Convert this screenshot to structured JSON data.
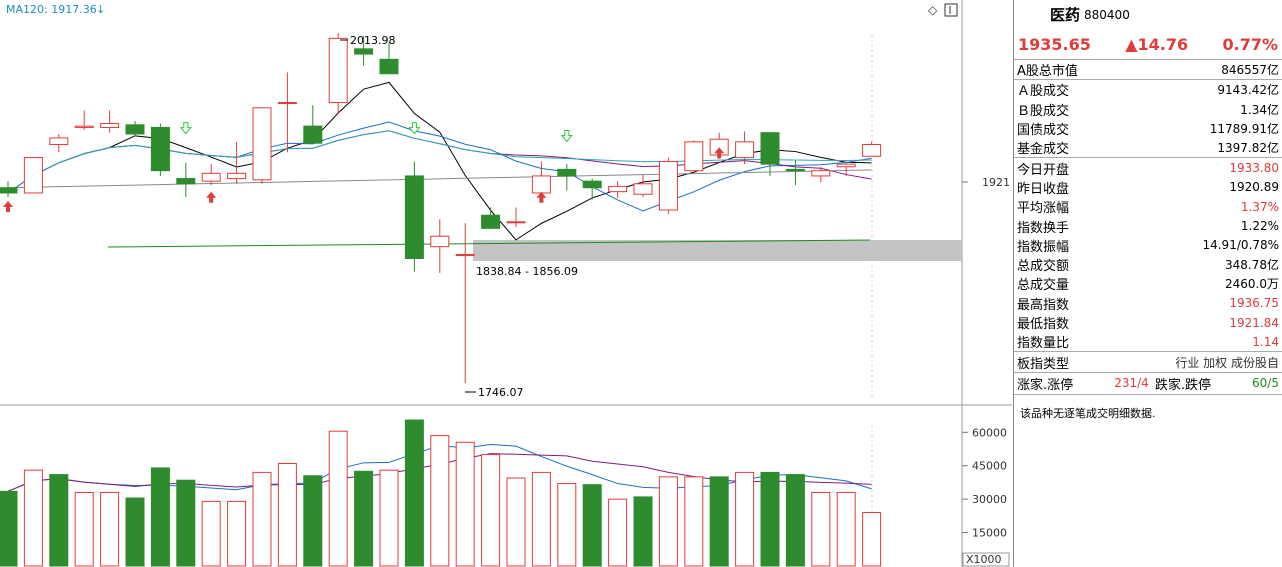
{
  "indicator": {
    "label": "MA120: 1917.36"
  },
  "annotations": {
    "high": "2013.98",
    "low": "1746.07",
    "gap": "1838.84 - 1856.09",
    "right_tick": "1921",
    "vol_unit": "X1000"
  },
  "chart_data": {
    "type": "candlestick",
    "price_candles": [
      {
        "o": 1897,
        "h": 1902,
        "l": 1890,
        "c": 1893
      },
      {
        "o": 1893,
        "h": 1920,
        "l": 1893,
        "c": 1920
      },
      {
        "o": 1930,
        "h": 1938,
        "l": 1924,
        "c": 1935
      },
      {
        "o": 1943,
        "h": 1956,
        "l": 1941,
        "c": 1944
      },
      {
        "o": 1943,
        "h": 1956,
        "l": 1939,
        "c": 1946
      },
      {
        "o": 1945,
        "h": 1948,
        "l": 1936,
        "c": 1938
      },
      {
        "o": 1943,
        "h": 1946,
        "l": 1906,
        "c": 1910
      },
      {
        "o": 1904,
        "h": 1916,
        "l": 1890,
        "c": 1900
      },
      {
        "o": 1902,
        "h": 1915,
        "l": 1899,
        "c": 1908
      },
      {
        "o": 1904,
        "h": 1932,
        "l": 1900,
        "c": 1908
      },
      {
        "o": 1903,
        "h": 1958,
        "l": 1900,
        "c": 1958
      },
      {
        "o": 1962,
        "h": 1985,
        "l": 1924,
        "c": 1962
      },
      {
        "o": 1944,
        "h": 1960,
        "l": 1935,
        "c": 1931
      },
      {
        "o": 1962,
        "h": 2015,
        "l": 1953,
        "c": 2011
      },
      {
        "o": 2003,
        "h": 2013,
        "l": 1990,
        "c": 1999
      },
      {
        "o": 1995,
        "h": 2008,
        "l": 1985,
        "c": 1984
      },
      {
        "o": 1906,
        "h": 1917,
        "l": 1833,
        "c": 1843
      },
      {
        "o": 1852,
        "h": 1873,
        "l": 1832,
        "c": 1860
      },
      {
        "o": 1846,
        "h": 1870,
        "l": 1748,
        "c": 1846
      },
      {
        "o": 1876,
        "h": 1882,
        "l": 1866,
        "c": 1866
      },
      {
        "o": 1871,
        "h": 1882,
        "l": 1867,
        "c": 1871
      },
      {
        "o": 1893,
        "h": 1917,
        "l": 1891,
        "c": 1906
      },
      {
        "o": 1911,
        "h": 1915,
        "l": 1895,
        "c": 1906
      },
      {
        "o": 1902,
        "h": 1904,
        "l": 1888,
        "c": 1897
      },
      {
        "o": 1894,
        "h": 1902,
        "l": 1889,
        "c": 1898
      },
      {
        "o": 1892,
        "h": 1907,
        "l": 1890,
        "c": 1900
      },
      {
        "o": 1880,
        "h": 1920,
        "l": 1877,
        "c": 1917
      },
      {
        "o": 1910,
        "h": 1933,
        "l": 1910,
        "c": 1932
      },
      {
        "o": 1922,
        "h": 1939,
        "l": 1919,
        "c": 1934
      },
      {
        "o": 1920,
        "h": 1940,
        "l": 1915,
        "c": 1932
      },
      {
        "o": 1939,
        "h": 1934,
        "l": 1906,
        "c": 1915
      },
      {
        "o": 1911,
        "h": 1918,
        "l": 1899,
        "c": 1910
      },
      {
        "o": 1906,
        "h": 1913,
        "l": 1901,
        "c": 1910
      },
      {
        "o": 1913,
        "h": 1917,
        "l": 1906,
        "c": 1915
      },
      {
        "o": 1921,
        "h": 1932,
        "l": 1921,
        "c": 1930
      }
    ],
    "volume": [
      {
        "v": 33500,
        "up": false
      },
      {
        "v": 43000,
        "up": true
      },
      {
        "v": 41000,
        "up": false
      },
      {
        "v": 33000,
        "up": true
      },
      {
        "v": 33000,
        "up": true
      },
      {
        "v": 30500,
        "up": false
      },
      {
        "v": 44000,
        "up": false
      },
      {
        "v": 38500,
        "up": false
      },
      {
        "v": 29000,
        "up": true
      },
      {
        "v": 29000,
        "up": true
      },
      {
        "v": 42000,
        "up": true
      },
      {
        "v": 46000,
        "up": true
      },
      {
        "v": 40500,
        "up": false
      },
      {
        "v": 60500,
        "up": true
      },
      {
        "v": 42500,
        "up": false
      },
      {
        "v": 43000,
        "up": true
      },
      {
        "v": 65500,
        "up": false
      },
      {
        "v": 58500,
        "up": true
      },
      {
        "v": 55500,
        "up": true
      },
      {
        "v": 50000,
        "up": true
      },
      {
        "v": 39500,
        "up": true
      },
      {
        "v": 42000,
        "up": true
      },
      {
        "v": 37000,
        "up": true
      },
      {
        "v": 36500,
        "up": false
      },
      {
        "v": 30000,
        "up": true
      },
      {
        "v": 31000,
        "up": false
      },
      {
        "v": 40000,
        "up": true
      },
      {
        "v": 40000,
        "up": true
      },
      {
        "v": 40000,
        "up": false
      },
      {
        "v": 42000,
        "up": true
      },
      {
        "v": 42000,
        "up": false
      },
      {
        "v": 41000,
        "up": false
      },
      {
        "v": 33000,
        "up": true
      },
      {
        "v": 33000,
        "up": true
      },
      {
        "v": 24000,
        "up": true
      }
    ],
    "price_ylim": [
      1735,
      2025
    ],
    "volume_ylim": [
      0,
      70000
    ],
    "volume_ticks": [
      60000,
      45000,
      30000,
      15000
    ],
    "gap_range": [
      1838.84,
      1856.09
    ]
  },
  "quote": {
    "name": "医药",
    "code": "880400",
    "price": "1935.65",
    "change": "▲14.76",
    "change_pct": "0.77%"
  },
  "stats": [
    {
      "label": "A股总市值",
      "value": "846557亿",
      "color": "#000000",
      "sep": true
    },
    {
      "label": "Ａ股成交",
      "value": "9143.42亿",
      "color": "#000000"
    },
    {
      "label": "Ｂ股成交",
      "value": "1.34亿",
      "color": "#000000"
    },
    {
      "label": "国债成交",
      "value": "11789.91亿",
      "color": "#000000"
    },
    {
      "label": "基金成交",
      "value": "1397.82亿",
      "color": "#000000",
      "sep": true
    },
    {
      "label": "今日开盘",
      "value": "1933.80",
      "color": "#e03c3c"
    },
    {
      "label": "昨日收盘",
      "value": "1920.89",
      "color": "#000000"
    },
    {
      "label": "平均涨幅",
      "value": "1.37%",
      "color": "#e03c3c"
    },
    {
      "label": "指数换手",
      "value": "1.22%",
      "color": "#000000"
    },
    {
      "label": "指数振幅",
      "value": "14.91/0.78%",
      "color": "#000000"
    },
    {
      "label": "总成交额",
      "value": "348.78亿",
      "color": "#000000"
    },
    {
      "label": "总成交量",
      "value": "2460.0万",
      "color": "#000000"
    },
    {
      "label": "最高指数",
      "value": "1936.75",
      "color": "#e03c3c"
    },
    {
      "label": "最低指数",
      "value": "1921.84",
      "color": "#e03c3c"
    },
    {
      "label": "指数量比",
      "value": "1.14",
      "color": "#e03c3c",
      "sep": true
    },
    {
      "label": "板指类型",
      "value": "行业 加权 成份股自",
      "color": "#333333",
      "sep": true
    }
  ],
  "breadth": {
    "up_label": "涨家.涨停",
    "up_value": "231/4",
    "down_label": "跌家.跌停",
    "down_value": "60/5"
  },
  "note": "该品种无逐笔成交明细数据.",
  "colors": {
    "up": "#e03c3c",
    "down": "#2e8b2e",
    "ma5": "#000000",
    "ma10": "#1a6fc8",
    "ma20": "#7b1e7b",
    "ma60": "#2aa8b8",
    "ma120": "#888888"
  }
}
